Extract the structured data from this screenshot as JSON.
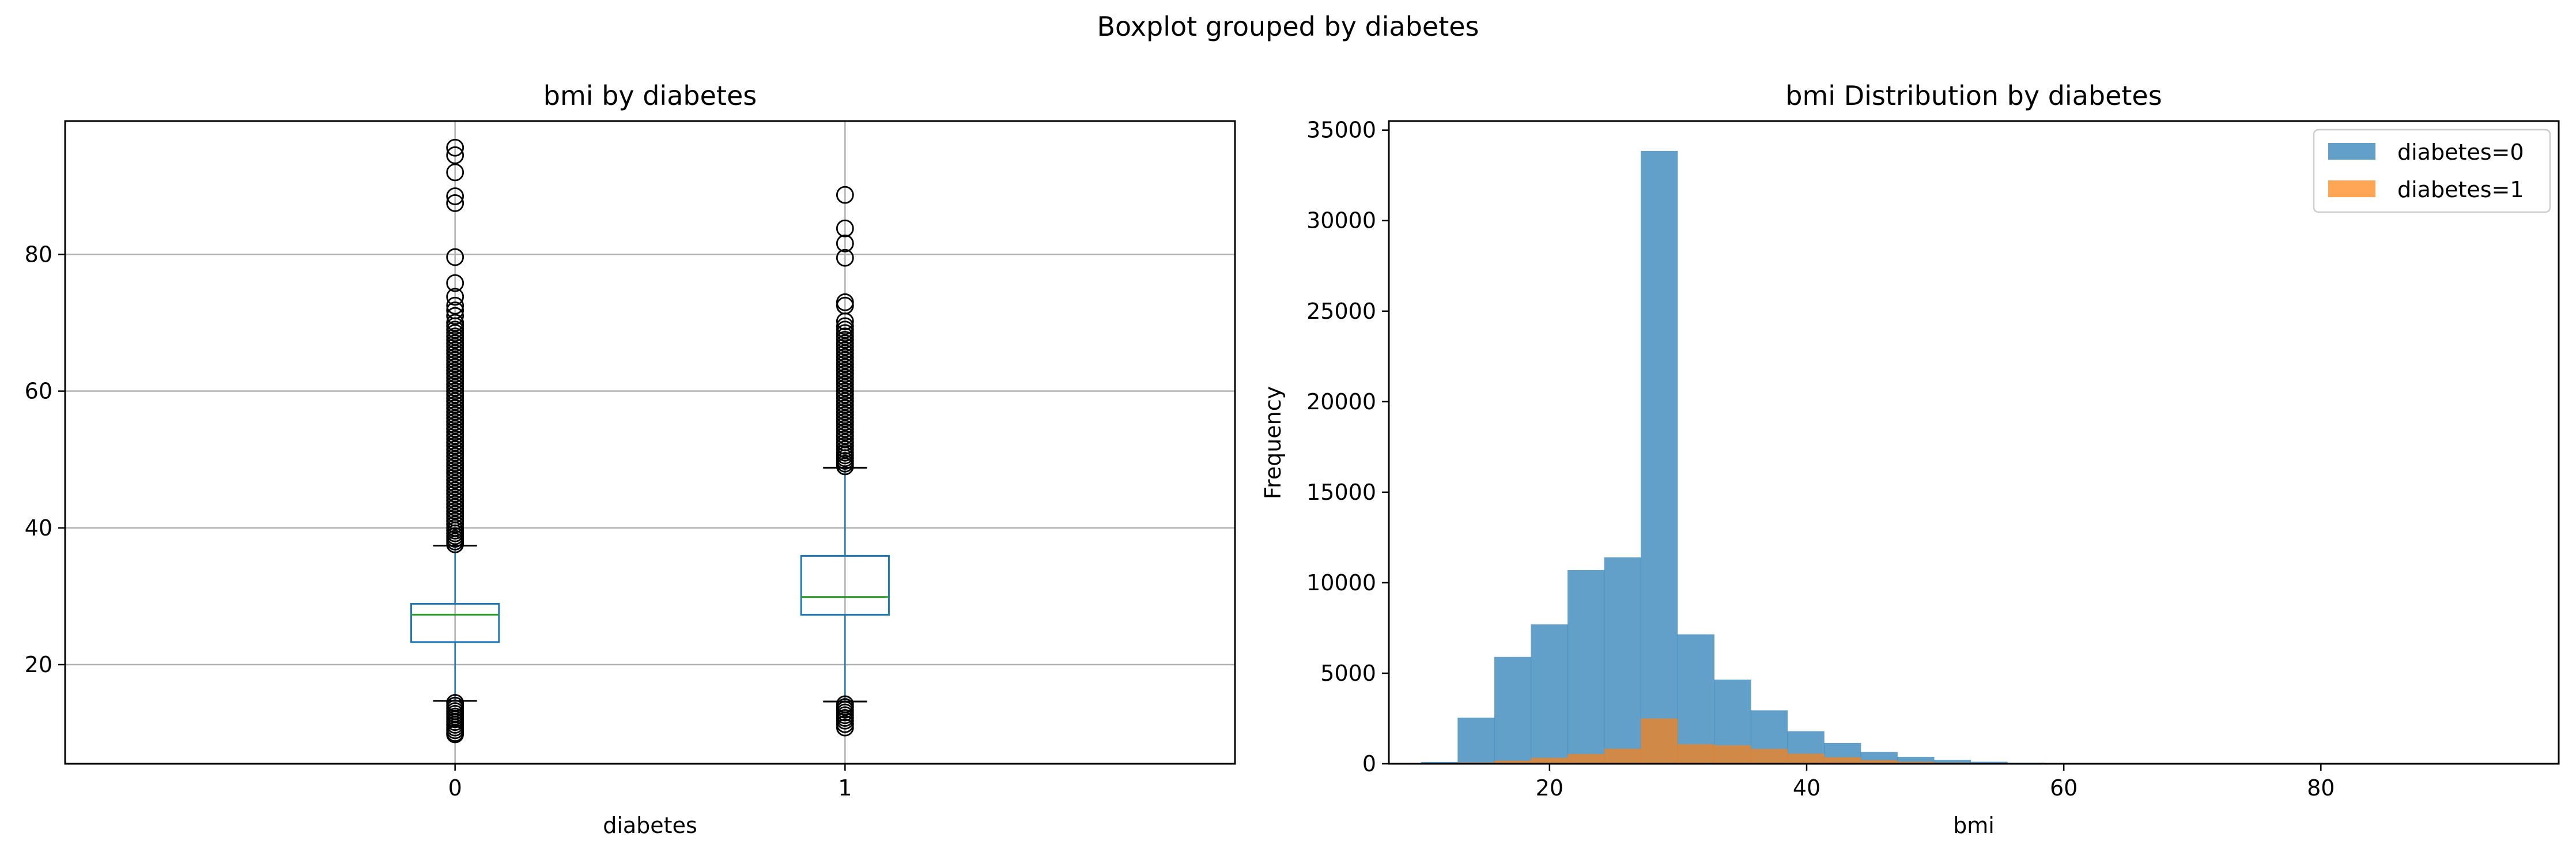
{
  "figure": {
    "suptitle": "Boxplot grouped by diabetes"
  },
  "chart_data": [
    {
      "type": "box",
      "title": "bmi by diabetes",
      "xlabel": "diabetes",
      "ylabel": "",
      "categories": [
        "0",
        "1"
      ],
      "ylim": [
        5.5,
        99.5
      ],
      "yticks": [
        20,
        40,
        60,
        80
      ],
      "grid": true,
      "colors": {
        "box": "#1f77b4",
        "median": "#2ca02c",
        "whisker": "#1f77b4",
        "cap": "#000000",
        "flier": "#000000"
      },
      "boxes": [
        {
          "category": "0",
          "whislo": 14.7,
          "q1": 23.3,
          "median": 27.3,
          "q3": 28.9,
          "whishi": 37.4,
          "fliers_high": [
            37.6,
            38,
            38.4,
            38.8,
            39.2,
            39.6,
            40,
            40.5,
            41,
            41.5,
            42,
            42.5,
            43,
            43.5,
            44,
            44.5,
            45,
            45.5,
            46,
            46.5,
            47,
            47.5,
            48,
            48.5,
            49,
            49.5,
            50,
            50.5,
            51,
            51.5,
            52,
            52.5,
            53,
            53.5,
            54,
            54.5,
            55,
            55.5,
            56,
            56.5,
            57,
            57.5,
            58,
            58.5,
            59,
            59.5,
            60,
            60.5,
            61,
            61.5,
            62,
            62.5,
            63,
            63.5,
            64,
            64.5,
            65,
            65.5,
            66,
            66.5,
            67,
            67.5,
            68,
            68.5,
            69,
            69.5,
            70,
            71,
            71.8,
            72.5,
            73.8,
            75.8,
            79.6,
            87.5,
            88.5,
            92,
            94.5,
            95.6
          ],
          "fliers_low": [
            14.4,
            14.0,
            13.6,
            13.2,
            12.8,
            12.4,
            12.0,
            11.6,
            11.2,
            10.8,
            10.4,
            10.0,
            9.8
          ]
        },
        {
          "category": "1",
          "whislo": 14.6,
          "q1": 27.3,
          "median": 29.9,
          "q3": 35.9,
          "whishi": 48.8,
          "fliers_high": [
            49,
            49.4,
            49.8,
            50.2,
            50.6,
            51,
            51.5,
            52,
            52.5,
            53,
            53.5,
            54,
            54.5,
            55,
            55.5,
            56,
            56.5,
            57,
            57.5,
            58,
            58.5,
            59,
            59.5,
            60,
            60.5,
            61,
            61.5,
            62,
            62.5,
            63,
            63.5,
            64,
            64.5,
            65,
            65.5,
            66,
            66.5,
            67,
            67.5,
            68,
            68.5,
            69,
            69.5,
            70.2,
            72.5,
            73,
            79.5,
            81.6,
            83.8,
            88.7
          ],
          "fliers_low": [
            14.2,
            13.8,
            13.4,
            13.0,
            12.6,
            12.2,
            11.8,
            11.3,
            10.8
          ]
        }
      ]
    },
    {
      "type": "histogram",
      "title": "bmi Distribution by diabetes",
      "xlabel": "bmi",
      "ylabel": "Frequency",
      "xlim": [
        7.5,
        98.5
      ],
      "ylim": [
        0,
        35500
      ],
      "xticks": [
        20,
        40,
        60,
        80
      ],
      "yticks": [
        0,
        5000,
        10000,
        15000,
        20000,
        25000,
        30000,
        35000
      ],
      "bin_start": 10.0,
      "bin_width": 2.85,
      "legend": "top-right",
      "series": [
        {
          "name": "diabetes=0",
          "color": "#1f77b4",
          "alpha": 0.7,
          "values": [
            100,
            2550,
            5900,
            7700,
            10700,
            11400,
            33850,
            7150,
            4650,
            2950,
            1800,
            1150,
            650,
            380,
            210,
            110,
            60,
            30,
            20,
            10,
            6,
            4,
            3,
            2,
            2,
            1,
            1,
            1,
            1,
            1
          ]
        },
        {
          "name": "diabetes=1",
          "color": "#ff7f0e",
          "alpha": 0.7,
          "values": [
            5,
            70,
            170,
            330,
            540,
            830,
            2500,
            1080,
            1020,
            820,
            560,
            360,
            200,
            110,
            60,
            30,
            15,
            8,
            4,
            2,
            1,
            1,
            1,
            0,
            0,
            0,
            0,
            0,
            0,
            1
          ]
        }
      ]
    }
  ]
}
